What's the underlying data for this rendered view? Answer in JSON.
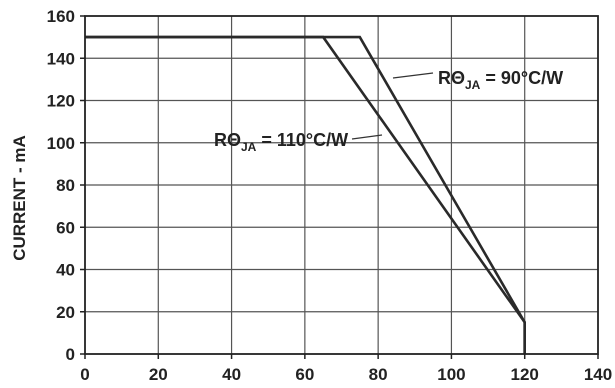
{
  "chart_data": {
    "type": "line",
    "title": "",
    "xlabel": "",
    "ylabel": "CURRENT - mA",
    "xlim": [
      0,
      140
    ],
    "ylim": [
      0,
      160
    ],
    "x_ticks": [
      0,
      20,
      40,
      60,
      80,
      100,
      120,
      140
    ],
    "y_ticks": [
      0,
      20,
      40,
      60,
      80,
      100,
      120,
      140,
      160
    ],
    "grid": true,
    "series": [
      {
        "x": [
          0,
          65,
          120,
          120
        ],
        "y": [
          150,
          150,
          15,
          0
        ]
      },
      {
        "x": [
          0,
          75,
          120,
          120
        ],
        "y": [
          150,
          150,
          15,
          0
        ]
      }
    ],
    "annotations": [
      {
        "main": "RΘ",
        "sub": "JA",
        "rest": " = 90°C/W"
      },
      {
        "main": "RΘ",
        "sub": "JA",
        "rest": " = 110°C/W"
      }
    ],
    "colors": {
      "line": "#2a2a2a",
      "grid": "#555555",
      "text": "#222222"
    }
  }
}
